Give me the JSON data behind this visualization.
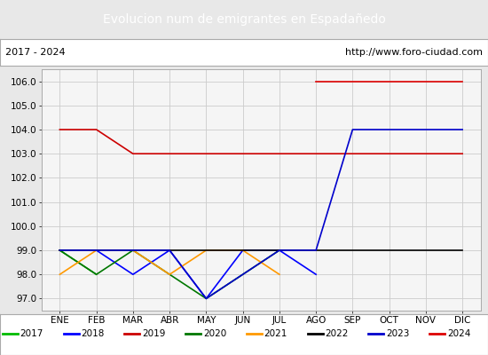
{
  "title": "Evolucion num de emigrantes en Espadañedo",
  "title_bg": "#4f81c7",
  "title_color": "white",
  "subtitle_left": "2017 - 2024",
  "subtitle_right": "http://www.foro-ciudad.com",
  "months": [
    "ENE",
    "FEB",
    "MAR",
    "ABR",
    "MAY",
    "JUN",
    "JUL",
    "AGO",
    "SEP",
    "OCT",
    "NOV",
    "DIC"
  ],
  "ylim": [
    96.5,
    106.5
  ],
  "yticks": [
    97.0,
    98.0,
    99.0,
    100.0,
    101.0,
    102.0,
    103.0,
    104.0,
    105.0,
    106.0
  ],
  "series": {
    "2017": {
      "color": "#00bb00",
      "data": [
        99.0,
        98.0,
        null,
        null,
        null,
        null,
        null,
        null,
        null,
        null,
        null,
        null
      ]
    },
    "2018": {
      "color": "#0000ff",
      "data": [
        99.0,
        99.0,
        98.0,
        99.0,
        97.0,
        99.0,
        99.0,
        98.0,
        null,
        null,
        null,
        null
      ]
    },
    "2019": {
      "color": "#cc0000",
      "data": [
        104.0,
        104.0,
        103.0,
        103.0,
        103.0,
        103.0,
        103.0,
        103.0,
        103.0,
        103.0,
        103.0,
        103.0
      ]
    },
    "2020": {
      "color": "#007700",
      "data": [
        99.0,
        98.0,
        99.0,
        98.0,
        97.0,
        98.0,
        99.0,
        null,
        null,
        null,
        null,
        null
      ]
    },
    "2021": {
      "color": "#ff9900",
      "data": [
        98.0,
        99.0,
        99.0,
        98.0,
        99.0,
        99.0,
        98.0,
        null,
        null,
        null,
        null,
        null
      ]
    },
    "2022": {
      "color": "#000000",
      "data": [
        99.0,
        99.0,
        99.0,
        99.0,
        99.0,
        99.0,
        99.0,
        99.0,
        99.0,
        99.0,
        99.0,
        99.0
      ]
    },
    "2023": {
      "color": "#0000cc",
      "data": [
        99.0,
        99.0,
        99.0,
        99.0,
        97.0,
        98.0,
        99.0,
        99.0,
        104.0,
        104.0,
        104.0,
        104.0
      ]
    },
    "2024": {
      "color": "#dd0000",
      "data": [
        null,
        null,
        null,
        null,
        null,
        null,
        null,
        106.0,
        106.0,
        106.0,
        106.0,
        106.0
      ]
    }
  },
  "legend_order": [
    "2017",
    "2018",
    "2019",
    "2020",
    "2021",
    "2022",
    "2023",
    "2024"
  ],
  "bg_color": "#e8e8e8",
  "plot_bg": "#f5f5f5"
}
